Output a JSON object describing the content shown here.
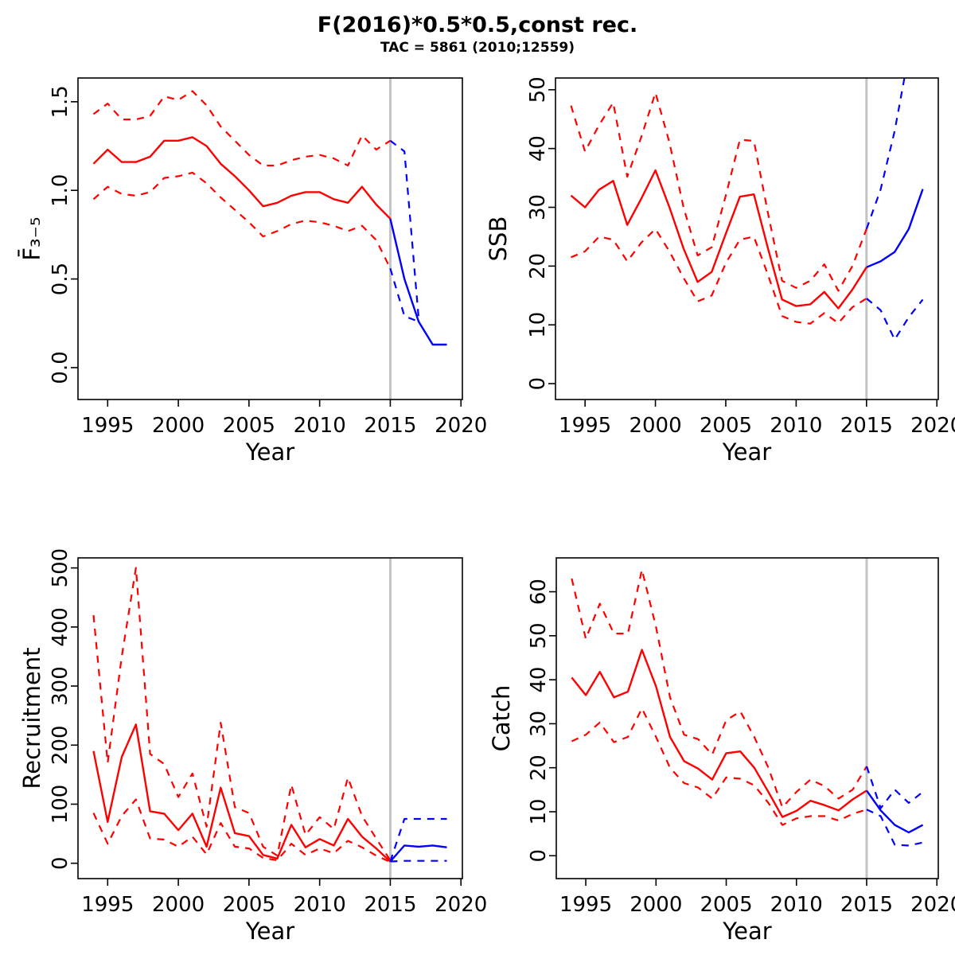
{
  "header": {
    "title": "F(2016)*0.5*0.5,const rec.",
    "subtitle": "TAC = 5861 (2010;12559)"
  },
  "colors": {
    "historical": "#ff0000",
    "projection": "#0000ff",
    "vline": "#c3c3c3",
    "frame": "#000000",
    "text": "#000000"
  },
  "chart_data": [
    {
      "type": "line",
      "id": "f-bar-3-5",
      "ylabel": "F̄₃₋₅",
      "xlabel": "Year",
      "xlim": [
        1992.9,
        2020.1
      ],
      "ylim": [
        -0.18,
        1.634
      ],
      "xticks": [
        1995,
        2000,
        2005,
        2010,
        2015,
        2020
      ],
      "xtick_labels": [
        "1995",
        "2000",
        "2005",
        "2010",
        "2015",
        "2020"
      ],
      "yticks": [
        0,
        0.5,
        1.0,
        1.5
      ],
      "ytick_labels": [
        "0.0",
        "0.5",
        "1.0",
        "1.5"
      ],
      "vline_x": 2015,
      "grid": false,
      "legend": "none",
      "series": [
        {
          "name": "historical-median-line",
          "color": "#ff0000",
          "dash": false,
          "x": [
            1994,
            1995,
            1996,
            1997,
            1998,
            1999,
            2000,
            2001,
            2002,
            2003,
            2004,
            2005,
            2006,
            2007,
            2008,
            2009,
            2010,
            2011,
            2012,
            2013,
            2014,
            2015
          ],
          "y": [
            1.15,
            1.23,
            1.16,
            1.16,
            1.19,
            1.28,
            1.28,
            1.3,
            1.25,
            1.15,
            1.08,
            1.0,
            0.91,
            0.93,
            0.97,
            0.99,
            0.99,
            0.95,
            0.93,
            1.02,
            0.92,
            0.84
          ]
        },
        {
          "name": "historical-upper-band-line",
          "color": "#ff0000",
          "dash": true,
          "x": [
            1994,
            1995,
            1996,
            1997,
            1998,
            1999,
            2000,
            2001,
            2002,
            2003,
            2004,
            2005,
            2006,
            2007,
            2008,
            2009,
            2010,
            2011,
            2012,
            2013,
            2014,
            2015
          ],
          "y": [
            1.43,
            1.49,
            1.4,
            1.4,
            1.42,
            1.53,
            1.51,
            1.56,
            1.48,
            1.36,
            1.28,
            1.2,
            1.14,
            1.14,
            1.17,
            1.19,
            1.2,
            1.18,
            1.14,
            1.31,
            1.23,
            1.28
          ]
        },
        {
          "name": "historical-lower-band-line",
          "color": "#ff0000",
          "dash": true,
          "x": [
            1994,
            1995,
            1996,
            1997,
            1998,
            1999,
            2000,
            2001,
            2002,
            2003,
            2004,
            2005,
            2006,
            2007,
            2008,
            2009,
            2010,
            2011,
            2012,
            2013,
            2014,
            2015
          ],
          "y": [
            0.95,
            1.02,
            0.98,
            0.97,
            0.99,
            1.07,
            1.08,
            1.1,
            1.04,
            0.96,
            0.89,
            0.82,
            0.74,
            0.77,
            0.81,
            0.83,
            0.82,
            0.8,
            0.77,
            0.8,
            0.72,
            0.56
          ]
        },
        {
          "name": "projection-median-line",
          "color": "#0000ff",
          "dash": false,
          "x": [
            2015,
            2016,
            2017,
            2018,
            2019
          ],
          "y": [
            0.84,
            0.5,
            0.26,
            0.13,
            0.13
          ]
        },
        {
          "name": "projection-upper-band-line",
          "color": "#0000ff",
          "dash": true,
          "x": [
            2015,
            2016,
            2017
          ],
          "y": [
            1.28,
            1.22,
            0.28
          ]
        },
        {
          "name": "projection-lower-band-line",
          "color": "#0000ff",
          "dash": true,
          "x": [
            2015,
            2016,
            2017
          ],
          "y": [
            0.56,
            0.29,
            0.26
          ]
        }
      ]
    },
    {
      "type": "line",
      "id": "ssb",
      "ylabel": "SSB",
      "xlabel": "Year",
      "xlim": [
        1992.9,
        2020.1
      ],
      "ylim": [
        -2.7,
        52.0
      ],
      "xticks": [
        1995,
        2000,
        2005,
        2010,
        2015,
        2020
      ],
      "xtick_labels": [
        "1995",
        "2000",
        "2005",
        "2010",
        "2015",
        "2020"
      ],
      "yticks": [
        0,
        10,
        20,
        30,
        40,
        50
      ],
      "ytick_labels": [
        "0",
        "10",
        "20",
        "30",
        "40",
        "50"
      ],
      "vline_x": 2015,
      "grid": false,
      "legend": "none",
      "series": [
        {
          "name": "historical-median-line",
          "color": "#ff0000",
          "dash": false,
          "x": [
            1994,
            1995,
            1996,
            1997,
            1998,
            1999,
            2000,
            2001,
            2002,
            2003,
            2004,
            2005,
            2006,
            2007,
            2008,
            2009,
            2010,
            2011,
            2012,
            2013,
            2014,
            2015
          ],
          "y": [
            32.0,
            30.0,
            33.0,
            34.5,
            27.0,
            31.5,
            36.3,
            30.0,
            23.0,
            17.3,
            19.0,
            25.5,
            31.8,
            32.2,
            23.0,
            14.3,
            13.2,
            13.5,
            15.6,
            12.8,
            16.0,
            19.8
          ]
        },
        {
          "name": "historical-upper-band-line",
          "color": "#ff0000",
          "dash": true,
          "x": [
            1994,
            1995,
            1996,
            1997,
            1998,
            1999,
            2000,
            2001,
            2002,
            2003,
            2004,
            2005,
            2006,
            2007,
            2008,
            2009,
            2010,
            2011,
            2012,
            2013,
            2014,
            2015
          ],
          "y": [
            47.3,
            39.5,
            44.0,
            47.8,
            35.2,
            42.0,
            49.5,
            41.0,
            30.0,
            21.8,
            23.2,
            32.0,
            41.5,
            41.3,
            29.0,
            17.5,
            16.3,
            17.5,
            20.3,
            15.8,
            20.0,
            26.3
          ]
        },
        {
          "name": "historical-lower-band-line",
          "color": "#ff0000",
          "dash": true,
          "x": [
            1994,
            1995,
            1996,
            1997,
            1998,
            1999,
            2000,
            2001,
            2002,
            2003,
            2004,
            2005,
            2006,
            2007,
            2008,
            2009,
            2010,
            2011,
            2012,
            2013,
            2014,
            2015
          ],
          "y": [
            21.5,
            22.5,
            25.0,
            24.5,
            20.8,
            24.0,
            26.3,
            22.5,
            18.0,
            14.0,
            15.0,
            20.5,
            24.5,
            25.0,
            18.5,
            11.5,
            10.5,
            10.2,
            12.0,
            10.3,
            13.0,
            14.5
          ]
        },
        {
          "name": "projection-median-line",
          "color": "#0000ff",
          "dash": false,
          "x": [
            2015,
            2016,
            2017,
            2018,
            2019
          ],
          "y": [
            19.8,
            20.8,
            22.4,
            26.3,
            33.1
          ]
        },
        {
          "name": "projection-upper-band-line",
          "color": "#0000ff",
          "dash": true,
          "x": [
            2015,
            2016,
            2017,
            2018
          ],
          "y": [
            26.3,
            33.0,
            43.0,
            56.0
          ]
        },
        {
          "name": "projection-lower-band-line",
          "color": "#0000ff",
          "dash": true,
          "x": [
            2015,
            2016,
            2017,
            2018,
            2019
          ],
          "y": [
            14.5,
            12.5,
            7.5,
            11.3,
            14.3
          ]
        }
      ]
    },
    {
      "type": "line",
      "id": "recruitment",
      "ylabel": "Recruitment",
      "xlabel": "Year",
      "xlim": [
        1992.9,
        2020.1
      ],
      "ylim": [
        -26,
        517
      ],
      "xticks": [
        1995,
        2000,
        2005,
        2010,
        2015,
        2020
      ],
      "xtick_labels": [
        "1995",
        "2000",
        "2005",
        "2010",
        "2015",
        "2020"
      ],
      "yticks": [
        0,
        100,
        200,
        300,
        400,
        500
      ],
      "ytick_labels": [
        "0",
        "100",
        "200",
        "300",
        "400",
        "500"
      ],
      "vline_x": 2015,
      "grid": false,
      "legend": "none",
      "series": [
        {
          "name": "historical-median-line",
          "color": "#ff0000",
          "dash": false,
          "x": [
            1994,
            1995,
            1996,
            1997,
            1998,
            1999,
            2000,
            2001,
            2002,
            2003,
            2004,
            2005,
            2006,
            2007,
            2008,
            2009,
            2010,
            2011,
            2012,
            2013,
            2014,
            2015
          ],
          "y": [
            190,
            70,
            180,
            235,
            88,
            84,
            56,
            84,
            28,
            128,
            51,
            46,
            14,
            8,
            65,
            27,
            41,
            30,
            75,
            45,
            25,
            3
          ]
        },
        {
          "name": "historical-upper-band-line",
          "color": "#ff0000",
          "dash": true,
          "x": [
            1994,
            1995,
            1996,
            1997,
            1998,
            1999,
            2000,
            2001,
            2002,
            2003,
            2004,
            2005,
            2006,
            2007,
            2008,
            2009,
            2010,
            2011,
            2012,
            2013,
            2014,
            2015
          ],
          "y": [
            420,
            170,
            350,
            500,
            185,
            168,
            112,
            152,
            62,
            238,
            95,
            85,
            28,
            13,
            133,
            48,
            78,
            58,
            145,
            80,
            42,
            5
          ]
        },
        {
          "name": "historical-lower-band-line",
          "color": "#ff0000",
          "dash": true,
          "x": [
            1994,
            1995,
            1996,
            1997,
            1998,
            1999,
            2000,
            2001,
            2002,
            2003,
            2004,
            2005,
            2006,
            2007,
            2008,
            2009,
            2010,
            2011,
            2012,
            2013,
            2014,
            2015
          ],
          "y": [
            85,
            33,
            80,
            108,
            42,
            40,
            28,
            45,
            15,
            68,
            28,
            25,
            9,
            5,
            33,
            14,
            25,
            17,
            38,
            27,
            13,
            2
          ]
        },
        {
          "name": "projection-median-line",
          "color": "#0000ff",
          "dash": false,
          "x": [
            2015,
            2016,
            2017,
            2018,
            2019
          ],
          "y": [
            3,
            30,
            28,
            30,
            27
          ]
        },
        {
          "name": "projection-upper-band-line",
          "color": "#0000ff",
          "dash": true,
          "x": [
            2015,
            2016,
            2017,
            2018,
            2019
          ],
          "y": [
            3,
            75,
            75,
            75,
            75
          ]
        },
        {
          "name": "projection-lower-band-line",
          "color": "#0000ff",
          "dash": true,
          "x": [
            2015,
            2016,
            2017,
            2018,
            2019
          ],
          "y": [
            3,
            4,
            4,
            4,
            4
          ]
        }
      ]
    },
    {
      "type": "line",
      "id": "catch",
      "ylabel": "Catch",
      "xlabel": "Year",
      "xlim": [
        1992.9,
        2020.1
      ],
      "ylim": [
        -5.2,
        67.7
      ],
      "xticks": [
        1995,
        2000,
        2005,
        2010,
        2015,
        2020
      ],
      "xtick_labels": [
        "1995",
        "2000",
        "2005",
        "2010",
        "2015",
        "2020"
      ],
      "yticks": [
        0,
        10,
        20,
        30,
        40,
        50,
        60
      ],
      "ytick_labels": [
        "0",
        "10",
        "20",
        "30",
        "40",
        "50",
        "60"
      ],
      "vline_x": 2015,
      "grid": false,
      "legend": "none",
      "series": [
        {
          "name": "historical-median-line",
          "color": "#ff0000",
          "dash": false,
          "x": [
            1994,
            1995,
            1996,
            1997,
            1998,
            1999,
            2000,
            2001,
            2002,
            2003,
            2004,
            2005,
            2006,
            2007,
            2008,
            2009,
            2010,
            2011,
            2012,
            2013,
            2014,
            2015
          ],
          "y": [
            40.5,
            36.5,
            41.8,
            36.0,
            37.3,
            46.8,
            38.5,
            27.0,
            21.5,
            19.8,
            17.3,
            23.3,
            23.7,
            20.0,
            14.5,
            8.8,
            10.2,
            12.5,
            11.5,
            10.3,
            12.8,
            14.8
          ]
        },
        {
          "name": "historical-upper-band-line",
          "color": "#ff0000",
          "dash": true,
          "x": [
            1994,
            1995,
            1996,
            1997,
            1998,
            1999,
            2000,
            2001,
            2002,
            2003,
            2004,
            2005,
            2006,
            2007,
            2008,
            2009,
            2010,
            2011,
            2012,
            2013,
            2014,
            2015
          ],
          "y": [
            63.0,
            49.3,
            57.3,
            50.5,
            50.5,
            65.0,
            52.0,
            36.0,
            27.5,
            26.5,
            23.0,
            30.8,
            32.8,
            27.0,
            20.0,
            11.0,
            14.5,
            17.3,
            15.8,
            13.0,
            15.0,
            20.3
          ]
        },
        {
          "name": "historical-lower-band-line",
          "color": "#ff0000",
          "dash": true,
          "x": [
            1994,
            1995,
            1996,
            1997,
            1998,
            1999,
            2000,
            2001,
            2002,
            2003,
            2004,
            2005,
            2006,
            2007,
            2008,
            2009,
            2010,
            2011,
            2012,
            2013,
            2014,
            2015
          ],
          "y": [
            26.0,
            27.5,
            30.3,
            25.8,
            27.0,
            33.5,
            27.0,
            20.0,
            16.5,
            15.5,
            13.0,
            17.8,
            17.5,
            16.0,
            12.0,
            7.0,
            8.5,
            9.0,
            9.0,
            8.0,
            9.5,
            10.5
          ]
        },
        {
          "name": "projection-median-line",
          "color": "#0000ff",
          "dash": false,
          "x": [
            2015,
            2016,
            2017,
            2018,
            2019
          ],
          "y": [
            14.8,
            10.3,
            7.0,
            5.3,
            7.0
          ]
        },
        {
          "name": "projection-upper-band-line",
          "color": "#0000ff",
          "dash": true,
          "x": [
            2015,
            2016,
            2017,
            2018,
            2019
          ],
          "y": [
            20.3,
            10.8,
            15.0,
            12.0,
            14.5
          ]
        },
        {
          "name": "projection-lower-band-line",
          "color": "#0000ff",
          "dash": true,
          "x": [
            2015,
            2016,
            2017,
            2018,
            2019
          ],
          "y": [
            10.5,
            9.0,
            2.5,
            2.3,
            3.0
          ]
        }
      ]
    }
  ]
}
